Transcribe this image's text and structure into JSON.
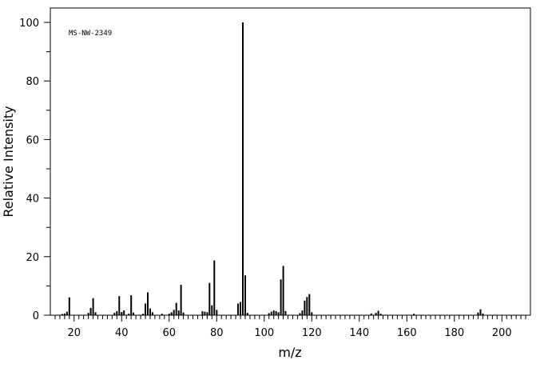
{
  "chart_data": {
    "type": "bar",
    "annotation": "MS-NW-2349",
    "xlabel": "m/z",
    "ylabel": "Relative Intensity",
    "xlim": [
      10,
      212
    ],
    "ylim": [
      0,
      100
    ],
    "x_ticks": [
      20,
      40,
      60,
      80,
      100,
      120,
      140,
      160,
      180,
      200
    ],
    "y_ticks": [
      0,
      20,
      40,
      60,
      80,
      100
    ],
    "grid": false,
    "legend": "none",
    "colors": {
      "bars": "#000000",
      "axes": "#000000",
      "background": "#ffffff"
    },
    "peaks": [
      {
        "mz": 15,
        "intensity": 0.4
      },
      {
        "mz": 16,
        "intensity": 0.6
      },
      {
        "mz": 17,
        "intensity": 1.2
      },
      {
        "mz": 18,
        "intensity": 6.1
      },
      {
        "mz": 26,
        "intensity": 0.8
      },
      {
        "mz": 27,
        "intensity": 2.5
      },
      {
        "mz": 28,
        "intensity": 5.8
      },
      {
        "mz": 29,
        "intensity": 1.0
      },
      {
        "mz": 37,
        "intensity": 0.8
      },
      {
        "mz": 38,
        "intensity": 1.4
      },
      {
        "mz": 39,
        "intensity": 6.5
      },
      {
        "mz": 40,
        "intensity": 1.1
      },
      {
        "mz": 41,
        "intensity": 1.6
      },
      {
        "mz": 43,
        "intensity": 0.5
      },
      {
        "mz": 44,
        "intensity": 6.8
      },
      {
        "mz": 45,
        "intensity": 0.9
      },
      {
        "mz": 49,
        "intensity": 0.5
      },
      {
        "mz": 50,
        "intensity": 4.0
      },
      {
        "mz": 51,
        "intensity": 7.8
      },
      {
        "mz": 52,
        "intensity": 2.3
      },
      {
        "mz": 53,
        "intensity": 1.0
      },
      {
        "mz": 57,
        "intensity": 0.5
      },
      {
        "mz": 60,
        "intensity": 0.5
      },
      {
        "mz": 61,
        "intensity": 1.0
      },
      {
        "mz": 62,
        "intensity": 1.8
      },
      {
        "mz": 63,
        "intensity": 4.2
      },
      {
        "mz": 64,
        "intensity": 1.6
      },
      {
        "mz": 65,
        "intensity": 10.4
      },
      {
        "mz": 66,
        "intensity": 0.9
      },
      {
        "mz": 74,
        "intensity": 1.4
      },
      {
        "mz": 75,
        "intensity": 1.2
      },
      {
        "mz": 76,
        "intensity": 1.0
      },
      {
        "mz": 77,
        "intensity": 11.0
      },
      {
        "mz": 78,
        "intensity": 3.4
      },
      {
        "mz": 79,
        "intensity": 18.7
      },
      {
        "mz": 80,
        "intensity": 1.8
      },
      {
        "mz": 89,
        "intensity": 4.0
      },
      {
        "mz": 90,
        "intensity": 4.5
      },
      {
        "mz": 91,
        "intensity": 100.0
      },
      {
        "mz": 92,
        "intensity": 13.6
      },
      {
        "mz": 93,
        "intensity": 0.8
      },
      {
        "mz": 102,
        "intensity": 0.7
      },
      {
        "mz": 103,
        "intensity": 1.2
      },
      {
        "mz": 104,
        "intensity": 1.6
      },
      {
        "mz": 105,
        "intensity": 1.4
      },
      {
        "mz": 106,
        "intensity": 1.0
      },
      {
        "mz": 107,
        "intensity": 12.2
      },
      {
        "mz": 108,
        "intensity": 16.8
      },
      {
        "mz": 109,
        "intensity": 1.4
      },
      {
        "mz": 115,
        "intensity": 0.7
      },
      {
        "mz": 116,
        "intensity": 1.6
      },
      {
        "mz": 117,
        "intensity": 5.0
      },
      {
        "mz": 118,
        "intensity": 6.2
      },
      {
        "mz": 119,
        "intensity": 7.2
      },
      {
        "mz": 120,
        "intensity": 1.0
      },
      {
        "mz": 145,
        "intensity": 0.6
      },
      {
        "mz": 147,
        "intensity": 0.8
      },
      {
        "mz": 148,
        "intensity": 1.5
      },
      {
        "mz": 149,
        "intensity": 0.5
      },
      {
        "mz": 163,
        "intensity": 0.5
      },
      {
        "mz": 190,
        "intensity": 0.9
      },
      {
        "mz": 191,
        "intensity": 2.0
      },
      {
        "mz": 192,
        "intensity": 0.6
      }
    ]
  }
}
